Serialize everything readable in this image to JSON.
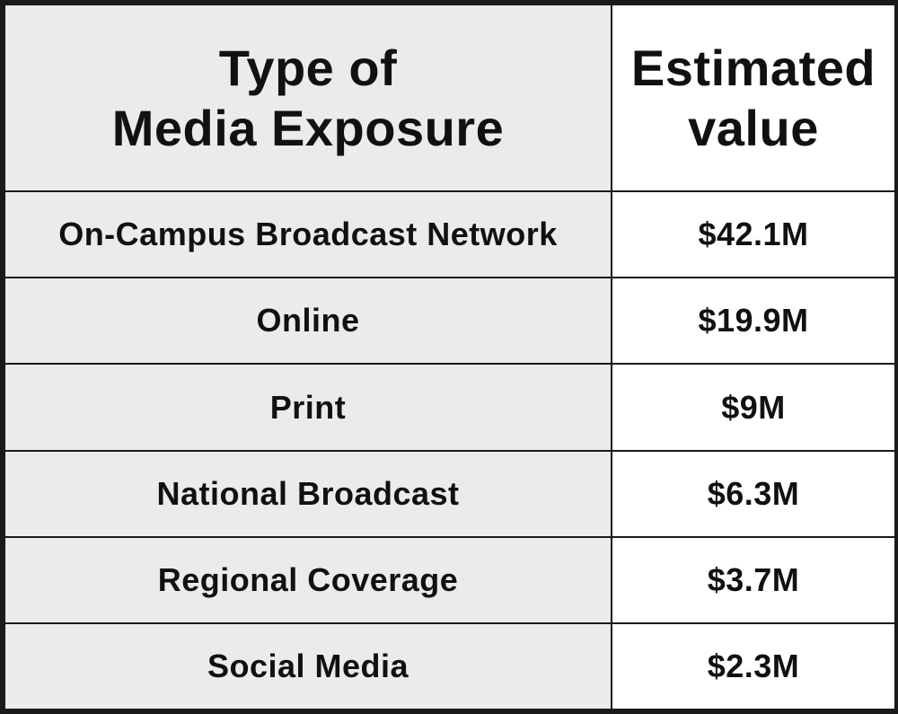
{
  "table": {
    "headers": {
      "type_line1": "Type of",
      "type_line2": "Media Exposure",
      "value_line1": "Estimated",
      "value_line2": "value"
    },
    "rows": [
      {
        "type": "On-Campus Broadcast Network",
        "value": "$42.1M"
      },
      {
        "type": "Online",
        "value": "$19.9M"
      },
      {
        "type": "Print",
        "value": "$9M"
      },
      {
        "type": "National Broadcast",
        "value": "$6.3M"
      },
      {
        "type": "Regional Coverage",
        "value": "$3.7M"
      },
      {
        "type": "Social Media",
        "value": "$2.3M"
      }
    ]
  },
  "colors": {
    "type_column_bg": "#ebebeb",
    "value_column_bg": "#ffffff",
    "border": "#1a1a1a",
    "text": "#111111"
  }
}
